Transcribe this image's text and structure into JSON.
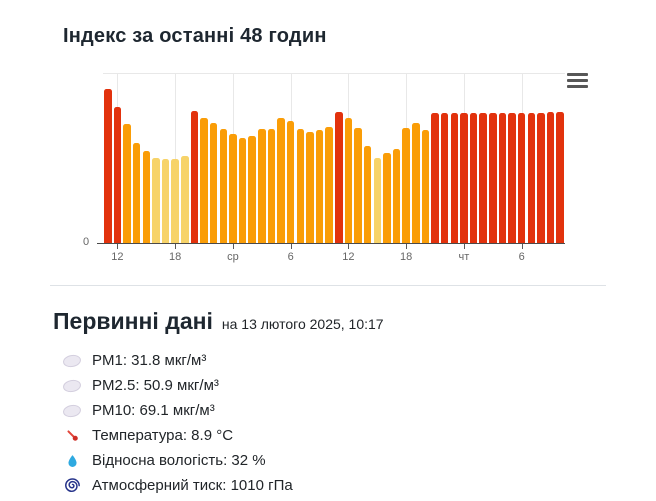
{
  "page": {
    "background": "#ffffff"
  },
  "chart": {
    "title": "Індекс за останні 48 годин",
    "context_menu_icon": "hamburger-menu-icon",
    "y_axis_labels": [
      "0"
    ]
  },
  "chart_data": {
    "type": "bar",
    "title": "Індекс за останні 48 годин",
    "x_tick_labels": [
      "12",
      "18",
      "ср",
      "6",
      "12",
      "18",
      "чт",
      "6"
    ],
    "x_tick_interval_hours": 6,
    "x_span_hours": 48,
    "y_axis_visible_labels": [
      "0"
    ],
    "ylim": [
      0,
      170
    ],
    "y_scale_note": "only 0 labeled; values are bar heights in px of the 170px plot area",
    "legend": "none",
    "grid": "vertical-light-gray",
    "colors": {
      "red": "#e2320d",
      "orange": "#fa9d07",
      "light": "#f7d369"
    },
    "bars": [
      {
        "c": "red",
        "v": 155
      },
      {
        "c": "red",
        "v": 137
      },
      {
        "c": "orange",
        "v": 120
      },
      {
        "c": "orange",
        "v": 101
      },
      {
        "c": "orange",
        "v": 93
      },
      {
        "c": "light",
        "v": 86
      },
      {
        "c": "light",
        "v": 85
      },
      {
        "c": "light",
        "v": 85
      },
      {
        "c": "light",
        "v": 88
      },
      {
        "c": "red",
        "v": 133
      },
      {
        "c": "orange",
        "v": 126
      },
      {
        "c": "orange",
        "v": 121
      },
      {
        "c": "orange",
        "v": 115
      },
      {
        "c": "orange",
        "v": 110
      },
      {
        "c": "orange",
        "v": 106
      },
      {
        "c": "orange",
        "v": 108
      },
      {
        "c": "orange",
        "v": 115
      },
      {
        "c": "orange",
        "v": 115
      },
      {
        "c": "orange",
        "v": 126
      },
      {
        "c": "orange",
        "v": 123
      },
      {
        "c": "orange",
        "v": 115
      },
      {
        "c": "orange",
        "v": 112
      },
      {
        "c": "orange",
        "v": 114
      },
      {
        "c": "orange",
        "v": 117
      },
      {
        "c": "red",
        "v": 132
      },
      {
        "c": "orange",
        "v": 126
      },
      {
        "c": "orange",
        "v": 116
      },
      {
        "c": "orange",
        "v": 98
      },
      {
        "c": "light",
        "v": 86
      },
      {
        "c": "orange",
        "v": 91
      },
      {
        "c": "orange",
        "v": 95
      },
      {
        "c": "orange",
        "v": 116
      },
      {
        "c": "orange",
        "v": 121
      },
      {
        "c": "orange",
        "v": 114
      },
      {
        "c": "red",
        "v": 131
      },
      {
        "c": "red",
        "v": 131
      },
      {
        "c": "red",
        "v": 131
      },
      {
        "c": "red",
        "v": 131
      },
      {
        "c": "red",
        "v": 131
      },
      {
        "c": "red",
        "v": 131
      },
      {
        "c": "red",
        "v": 131
      },
      {
        "c": "red",
        "v": 131
      },
      {
        "c": "red",
        "v": 131
      },
      {
        "c": "red",
        "v": 131
      },
      {
        "c": "red",
        "v": 131
      },
      {
        "c": "red",
        "v": 131
      },
      {
        "c": "red",
        "v": 132
      },
      {
        "c": "red",
        "v": 132
      }
    ]
  },
  "primary": {
    "title": "Первинні дані",
    "subtitle": "на 13 лютого 2025, 10:17",
    "items": [
      {
        "icon": "pm-icon",
        "text": "PM1: 31.8 мкг/м³"
      },
      {
        "icon": "pm-icon",
        "text": "PM2.5: 50.9 мкг/м³"
      },
      {
        "icon": "pm-icon",
        "text": "PM10: 69.1 мкг/м³"
      },
      {
        "icon": "thermometer-icon",
        "text": "Температура: 8.9 °C"
      },
      {
        "icon": "droplet-icon",
        "text": "Відносна вологість: 32 %"
      },
      {
        "icon": "cyclone-icon",
        "text": "Атмосферний тиск: 1010 гПа"
      }
    ]
  }
}
